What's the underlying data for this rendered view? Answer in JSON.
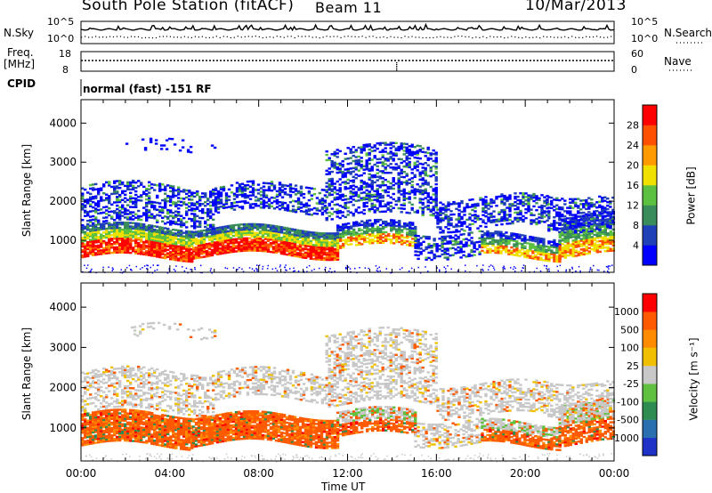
{
  "header": {
    "station": "South Pole Station (fitACF)",
    "beam": "Beam 11",
    "date": "10/Mar/2013"
  },
  "top_panel": {
    "left_label": "N.Sky",
    "right_label": "N.Search",
    "left_ticks": [
      "10^5",
      "10^0"
    ],
    "right_ticks": [
      "10^5",
      "10^0"
    ]
  },
  "freq_panel": {
    "left_label_1": "Freq.",
    "left_label_2": "[MHz]",
    "right_label": "Nave",
    "left_ticks": [
      "18",
      "8"
    ],
    "right_ticks": [
      "60",
      "0"
    ]
  },
  "cpid": {
    "label": "CPID",
    "value": "normal (fast) -151 RF"
  },
  "chart_data": [
    {
      "type": "heatmap",
      "name": "power",
      "ylabel": "Slant Range [km]",
      "ylim": [
        180,
        4600
      ],
      "yticks": [
        "1000",
        "2000",
        "3000",
        "4000"
      ],
      "xlabel": "",
      "xlim_hours": [
        0,
        24
      ],
      "colorbar": {
        "label": "Power [dB]",
        "ticks": [
          "28",
          "24",
          "20",
          "16",
          "12",
          "8",
          "4"
        ],
        "colors": [
          "#0000ff",
          "#2040b8",
          "#3a8c5a",
          "#5cc040",
          "#f0e000",
          "#ff9a00",
          "#ff5000",
          "#ff0000"
        ]
      }
    },
    {
      "type": "heatmap",
      "name": "velocity",
      "ylabel": "Slant Range [km]",
      "ylim": [
        180,
        4600
      ],
      "yticks": [
        "1000",
        "2000",
        "3000",
        "4000"
      ],
      "xlabel": "Time UT",
      "xticks": [
        "00:00",
        "04:00",
        "08:00",
        "12:00",
        "16:00",
        "20:00",
        "00:00"
      ],
      "colorbar": {
        "label": "Velocity [m s⁻¹]",
        "ticks": [
          "1000",
          "500",
          "100",
          "25",
          "-25",
          "-100",
          "-500",
          "-1000"
        ],
        "colors": [
          "#1e32c8",
          "#2a70b0",
          "#2e8c50",
          "#60c040",
          "#c8c8c8",
          "#f0c000",
          "#ff8c00",
          "#ff5a00",
          "#ff0000"
        ]
      }
    }
  ]
}
